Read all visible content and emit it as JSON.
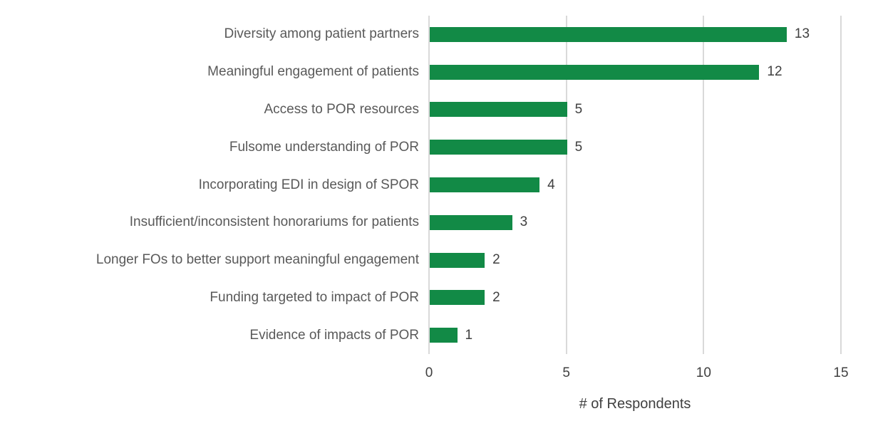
{
  "chart_data": {
    "type": "bar",
    "orientation": "horizontal",
    "title": "",
    "categories": [
      "Diversity among patient partners",
      "Meaningful engagement of patients",
      "Access to POR resources",
      "Fulsome understanding of POR",
      "Incorporating EDI in design of SPOR",
      "Insufficient/inconsistent honorariums for patients",
      "Longer FOs to better support meaningful engagement",
      "Funding targeted to impact of POR",
      "Evidence of impacts of POR"
    ],
    "values": [
      13,
      12,
      5,
      5,
      4,
      3,
      2,
      2,
      1
    ],
    "xlabel": "# of Respondents",
    "ylabel": "",
    "xlim": [
      0,
      15
    ],
    "xticks": [
      0,
      5,
      10,
      15
    ],
    "grid": true,
    "legend": "none",
    "colors": {
      "bar": "#128a46",
      "gridline": "#d9d9d9",
      "category_label": "#595959",
      "value_label": "#404040",
      "tick_label": "#404040",
      "axis_title": "#404040",
      "background": "#ffffff"
    }
  }
}
